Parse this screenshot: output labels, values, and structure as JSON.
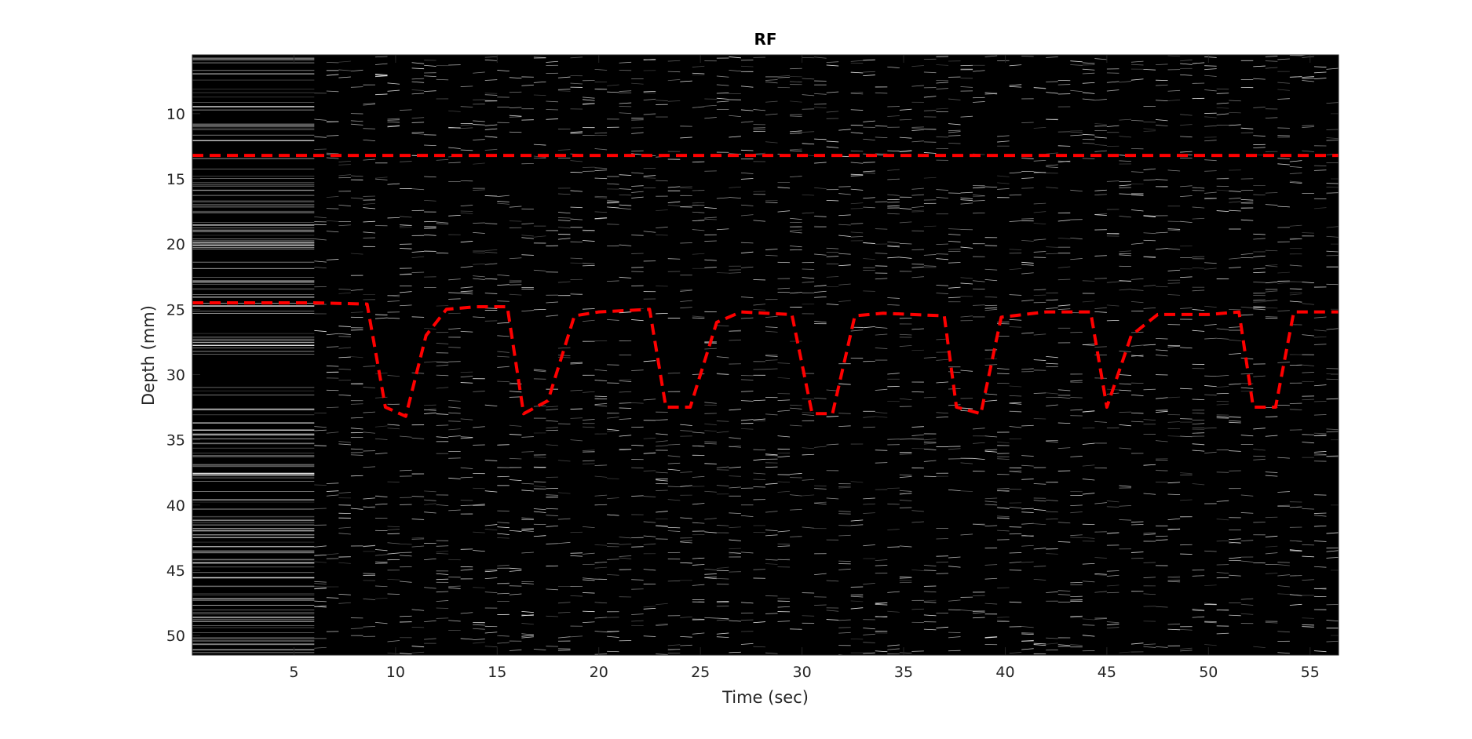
{
  "chart_data": {
    "type": "line",
    "title": "RF",
    "xlabel": "Time (sec)",
    "ylabel": "Depth (mm)",
    "xlim": [
      0,
      56.4
    ],
    "ylim": [
      5.5,
      51.5
    ],
    "y_axis_reversed": true,
    "grid": false,
    "background_image": "grayscale M-mode RF ultrasound intensity (white echo lines on black)",
    "colors": {
      "background": "#000000",
      "echo": "#ffffff",
      "series_line": "#ff0000",
      "axis_text": "#262626"
    },
    "xticks": [
      5,
      10,
      15,
      20,
      25,
      30,
      35,
      40,
      45,
      50,
      55
    ],
    "xtick_labels": [
      "5",
      "10",
      "15",
      "20",
      "25",
      "30",
      "35",
      "40",
      "45",
      "50",
      "55"
    ],
    "yticks": [
      10,
      15,
      20,
      25,
      30,
      35,
      40,
      45,
      50
    ],
    "ytick_labels": [
      "10",
      "15",
      "20",
      "25",
      "30",
      "35",
      "40",
      "45",
      "50"
    ],
    "series": [
      {
        "line_style": "dashed",
        "color": "#ff0000",
        "x": [
          0,
          6,
          8.6,
          9.5,
          10.5,
          11.5,
          12.5,
          14,
          15.5,
          16.3,
          17.5,
          18.8,
          20,
          22.5,
          23.3,
          24.5,
          25.8,
          27,
          29.5,
          30.5,
          31.5,
          32.6,
          34,
          37,
          37.6,
          38.8,
          39.8,
          42,
          44.2,
          45,
          46.2,
          47.5,
          50,
          51.5,
          52.2,
          53.3,
          54.2,
          56.4
        ],
        "y": [
          24.5,
          24.5,
          24.6,
          32.5,
          33.2,
          27,
          25,
          24.8,
          24.8,
          33,
          32,
          25.5,
          25.2,
          25,
          32.5,
          32.5,
          26,
          25.2,
          25.4,
          33,
          33,
          25.5,
          25.3,
          25.5,
          32.5,
          33,
          25.6,
          25.2,
          25.2,
          32.5,
          27,
          25.4,
          25.4,
          25.2,
          32.5,
          32.5,
          25.2,
          25.2
        ]
      },
      {
        "line_style": "dashed",
        "color": "#ff0000",
        "x": [
          0,
          56.4
        ],
        "y": [
          13.2,
          13.2
        ]
      }
    ]
  }
}
